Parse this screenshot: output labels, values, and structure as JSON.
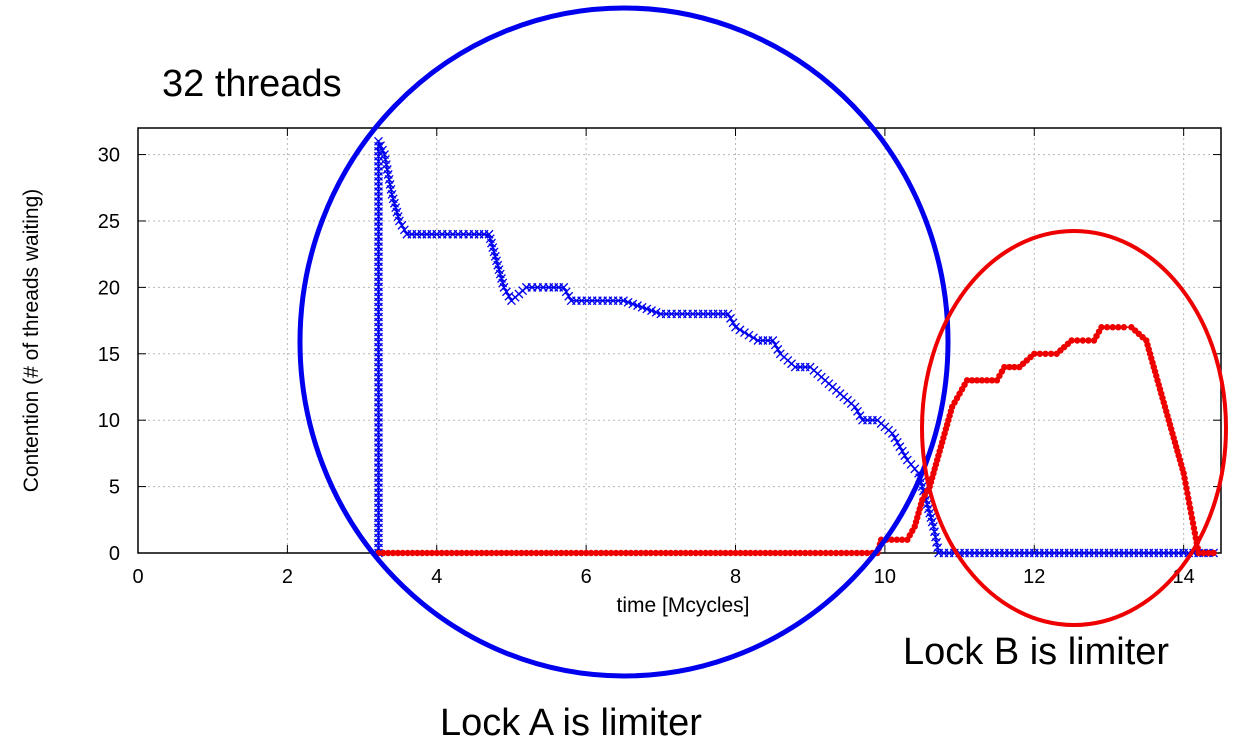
{
  "chart_data": {
    "type": "scatter",
    "xlabel": "time [Mcycles]",
    "ylabel": "Contention (# of threads waiting)",
    "xlim": [
      0,
      14.5
    ],
    "ylim": [
      0,
      32
    ],
    "x_ticks": [
      "0",
      "2",
      "4",
      "6",
      "8",
      "10",
      "12",
      "14"
    ],
    "y_ticks": [
      "0",
      "5",
      "10",
      "15",
      "20",
      "25",
      "30"
    ],
    "grid": true,
    "series": [
      {
        "color": "#0000ee",
        "marker": "x",
        "points": [
          [
            3.22,
            0
          ],
          [
            3.22,
            31
          ],
          [
            3.3,
            30
          ],
          [
            3.4,
            27
          ],
          [
            3.5,
            25
          ],
          [
            3.6,
            24
          ],
          [
            4.0,
            24
          ],
          [
            4.5,
            24
          ],
          [
            4.7,
            24
          ],
          [
            4.8,
            22
          ],
          [
            4.9,
            20
          ],
          [
            5.0,
            19
          ],
          [
            5.2,
            20
          ],
          [
            5.5,
            20
          ],
          [
            5.7,
            20
          ],
          [
            5.8,
            19
          ],
          [
            6.5,
            19
          ],
          [
            7.0,
            18
          ],
          [
            7.5,
            18
          ],
          [
            7.9,
            18
          ],
          [
            8.0,
            17
          ],
          [
            8.3,
            16
          ],
          [
            8.5,
            16
          ],
          [
            8.6,
            15
          ],
          [
            8.8,
            14
          ],
          [
            9.0,
            14
          ],
          [
            9.2,
            13
          ],
          [
            9.4,
            12
          ],
          [
            9.6,
            11
          ],
          [
            9.7,
            10
          ],
          [
            9.9,
            10
          ],
          [
            10.1,
            9
          ],
          [
            10.3,
            7
          ],
          [
            10.45,
            6
          ],
          [
            10.55,
            4
          ],
          [
            10.65,
            2
          ],
          [
            10.72,
            0
          ],
          [
            11.0,
            0
          ],
          [
            12.0,
            0
          ],
          [
            13.0,
            0
          ],
          [
            14.0,
            0
          ],
          [
            14.4,
            0
          ]
        ]
      },
      {
        "color": "#ee0000",
        "marker": "dot",
        "points": [
          [
            3.22,
            0
          ],
          [
            4.0,
            0
          ],
          [
            5.0,
            0
          ],
          [
            6.0,
            0
          ],
          [
            7.0,
            0
          ],
          [
            8.0,
            0
          ],
          [
            9.0,
            0
          ],
          [
            9.9,
            0
          ],
          [
            9.95,
            1
          ],
          [
            10.3,
            1
          ],
          [
            10.4,
            2
          ],
          [
            10.5,
            4
          ],
          [
            10.6,
            5
          ],
          [
            10.7,
            7
          ],
          [
            10.8,
            9
          ],
          [
            10.9,
            11
          ],
          [
            11.0,
            12
          ],
          [
            11.1,
            13
          ],
          [
            11.3,
            13
          ],
          [
            11.5,
            13
          ],
          [
            11.6,
            14
          ],
          [
            11.8,
            14
          ],
          [
            12.0,
            15
          ],
          [
            12.3,
            15
          ],
          [
            12.5,
            16
          ],
          [
            12.8,
            16
          ],
          [
            12.9,
            17
          ],
          [
            13.2,
            17
          ],
          [
            13.3,
            17
          ],
          [
            13.5,
            16
          ],
          [
            13.6,
            14
          ],
          [
            13.7,
            12
          ],
          [
            13.8,
            10
          ],
          [
            13.9,
            8
          ],
          [
            14.0,
            6
          ],
          [
            14.1,
            3
          ],
          [
            14.2,
            0
          ],
          [
            14.4,
            0
          ]
        ]
      }
    ],
    "annotations": [
      {
        "text": "32 threads"
      },
      {
        "text": "Lock A is limiter"
      },
      {
        "text": "Lock B is limiter"
      }
    ]
  }
}
